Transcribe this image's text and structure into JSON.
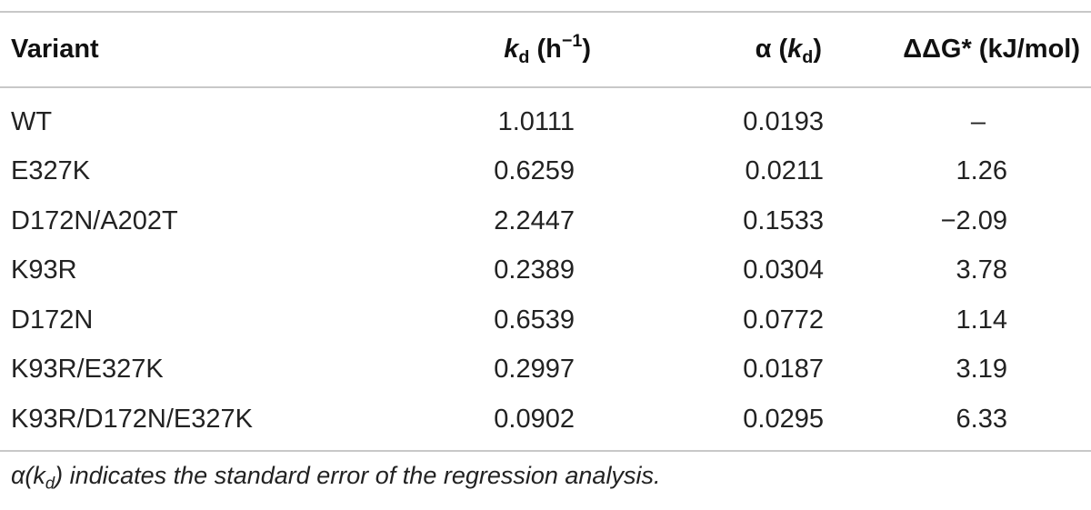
{
  "header": {
    "variant": "Variant",
    "kd_k": "k",
    "kd_sub": "d",
    "kd_unit_open": " (h",
    "kd_sup": "−1",
    "kd_unit_close": ")",
    "alpha_prefix": "α (",
    "alpha_k": "k",
    "alpha_sub": "d",
    "alpha_close": ")",
    "ddg": "ΔΔG* (kJ/mol)"
  },
  "rows": [
    {
      "variant": "WT",
      "kd": "1.0111",
      "alpha": "0.0193",
      "ddg": "–"
    },
    {
      "variant": "E327K",
      "kd": "0.6259",
      "alpha": "0.0211",
      "ddg": "1.26"
    },
    {
      "variant": "D172N/A202T",
      "kd": "2.2447",
      "alpha": "0.1533",
      "ddg": "−2.09"
    },
    {
      "variant": "K93R",
      "kd": "0.2389",
      "alpha": "0.0304",
      "ddg": "3.78"
    },
    {
      "variant": "D172N",
      "kd": "0.6539",
      "alpha": "0.0772",
      "ddg": "1.14"
    },
    {
      "variant": "K93R/E327K",
      "kd": "0.2997",
      "alpha": "0.0187",
      "ddg": "3.19"
    },
    {
      "variant": "K93R/D172N/E327K",
      "kd": "0.0902",
      "alpha": "0.0295",
      "ddg": "6.33"
    }
  ],
  "footnote": {
    "prefix": "α(k",
    "sub": "d",
    "suffix": ") indicates the standard error of the regression analysis."
  }
}
